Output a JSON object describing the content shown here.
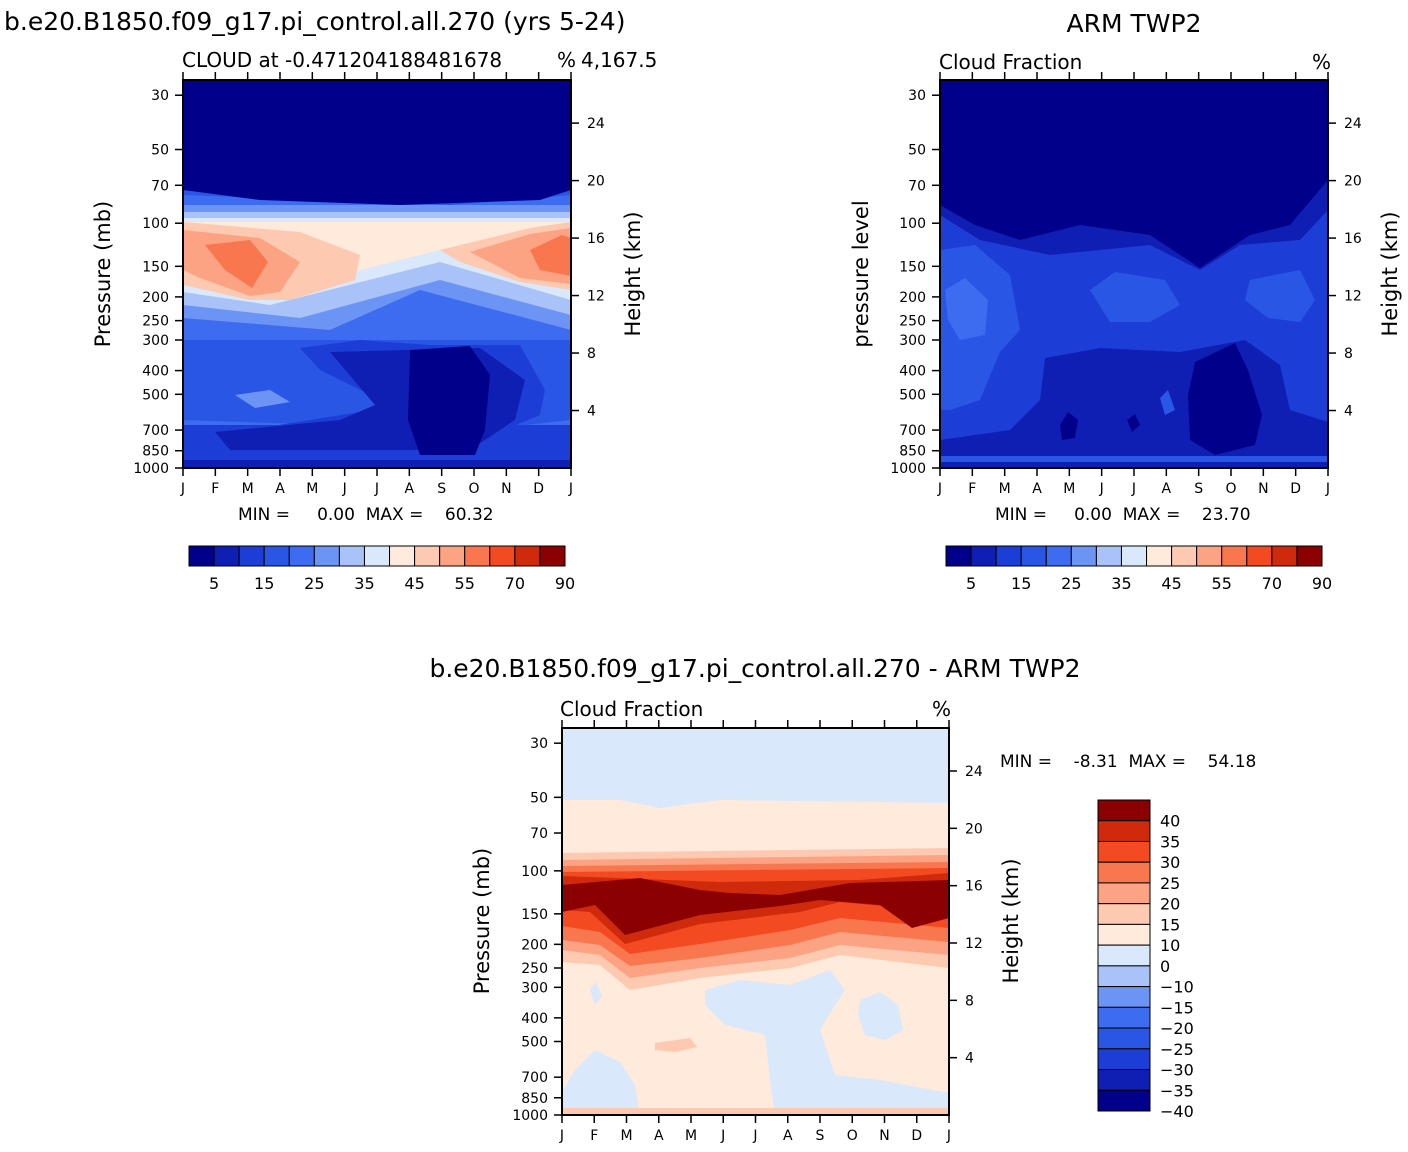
{
  "page": {
    "title_left": "b.e20.B1850.f09_g17.pi_control.all.270 (yrs 5-24)",
    "title_right": "ARM TWP2",
    "title_diff": "b.e20.B1850.f09_g17.pi_control.all.270 - ARM TWP2"
  },
  "colors": {
    "sequential": [
      "#00008b",
      "#0f1fb4",
      "#1d3ed6",
      "#2a56e6",
      "#3d6cf0",
      "#6b94f5",
      "#a9c3f8",
      "#d9e8fb",
      "#ffeadb",
      "#fdc9b0",
      "#fca383",
      "#f9774f",
      "#f34a21",
      "#cf2a0c",
      "#8b0000"
    ],
    "diverging": [
      "#00008b",
      "#0f1fb4",
      "#1d3ed6",
      "#2a56e6",
      "#3d6cf0",
      "#6b94f5",
      "#a9c3f8",
      "#d9e8fb",
      "#ffeadb",
      "#fdc9b0",
      "#fca383",
      "#f9774f",
      "#f34a21",
      "#cf2a0c",
      "#8b0000"
    ]
  },
  "chart_data": [
    {
      "type": "heatmap",
      "id": "model",
      "subtitle": "CLOUD at -0.471204188481678",
      "subtitle_right": "4,167.5",
      "units": "%",
      "ylabel": "Pressure (mb)",
      "ylabel_right": "Height (km)",
      "y_ticks": [
        30,
        50,
        70,
        100,
        150,
        200,
        250,
        300,
        400,
        500,
        700,
        850,
        1000
      ],
      "y_right_ticks": [
        24,
        20,
        16,
        12,
        8,
        4
      ],
      "x_ticks": [
        "J",
        "F",
        "M",
        "A",
        "M",
        "J",
        "J",
        "A",
        "S",
        "O",
        "N",
        "D",
        "J"
      ],
      "stats": "MIN =     0.00  MAX =    60.32",
      "colorbar_labels": [
        "5",
        "15",
        "25",
        "35",
        "45",
        "55",
        "70",
        "90"
      ],
      "min": 0.0,
      "max": 60.32
    },
    {
      "type": "heatmap",
      "id": "obs",
      "subtitle": "Cloud Fraction",
      "units": "%",
      "ylabel": "pressure level",
      "ylabel_right": "Height (km)",
      "y_ticks": [
        30,
        50,
        70,
        100,
        150,
        200,
        250,
        300,
        400,
        500,
        700,
        850,
        1000
      ],
      "y_right_ticks": [
        24,
        20,
        16,
        12,
        8,
        4
      ],
      "x_ticks": [
        "J",
        "F",
        "M",
        "A",
        "M",
        "J",
        "J",
        "A",
        "S",
        "O",
        "N",
        "D",
        "J"
      ],
      "stats": "MIN =     0.00  MAX =    23.70",
      "colorbar_labels": [
        "5",
        "15",
        "25",
        "35",
        "45",
        "55",
        "70",
        "90"
      ],
      "min": 0.0,
      "max": 23.7
    },
    {
      "type": "heatmap",
      "id": "diff",
      "subtitle": "Cloud Fraction",
      "units": "%",
      "ylabel": "Pressure (mb)",
      "ylabel_right": "Height (km)",
      "y_ticks": [
        30,
        50,
        70,
        100,
        150,
        200,
        250,
        300,
        400,
        500,
        700,
        850,
        1000
      ],
      "y_right_ticks": [
        24,
        20,
        16,
        12,
        8,
        4
      ],
      "x_ticks": [
        "J",
        "F",
        "M",
        "A",
        "M",
        "J",
        "J",
        "A",
        "S",
        "O",
        "N",
        "D",
        "J"
      ],
      "stats": "MIN =    -8.31  MAX =    54.18",
      "colorbar_labels": [
        "40",
        "35",
        "30",
        "25",
        "20",
        "15",
        "10",
        "0",
        "−10",
        "−15",
        "−20",
        "−25",
        "−30",
        "−35",
        "−40"
      ],
      "min": -8.31,
      "max": 54.18
    }
  ]
}
